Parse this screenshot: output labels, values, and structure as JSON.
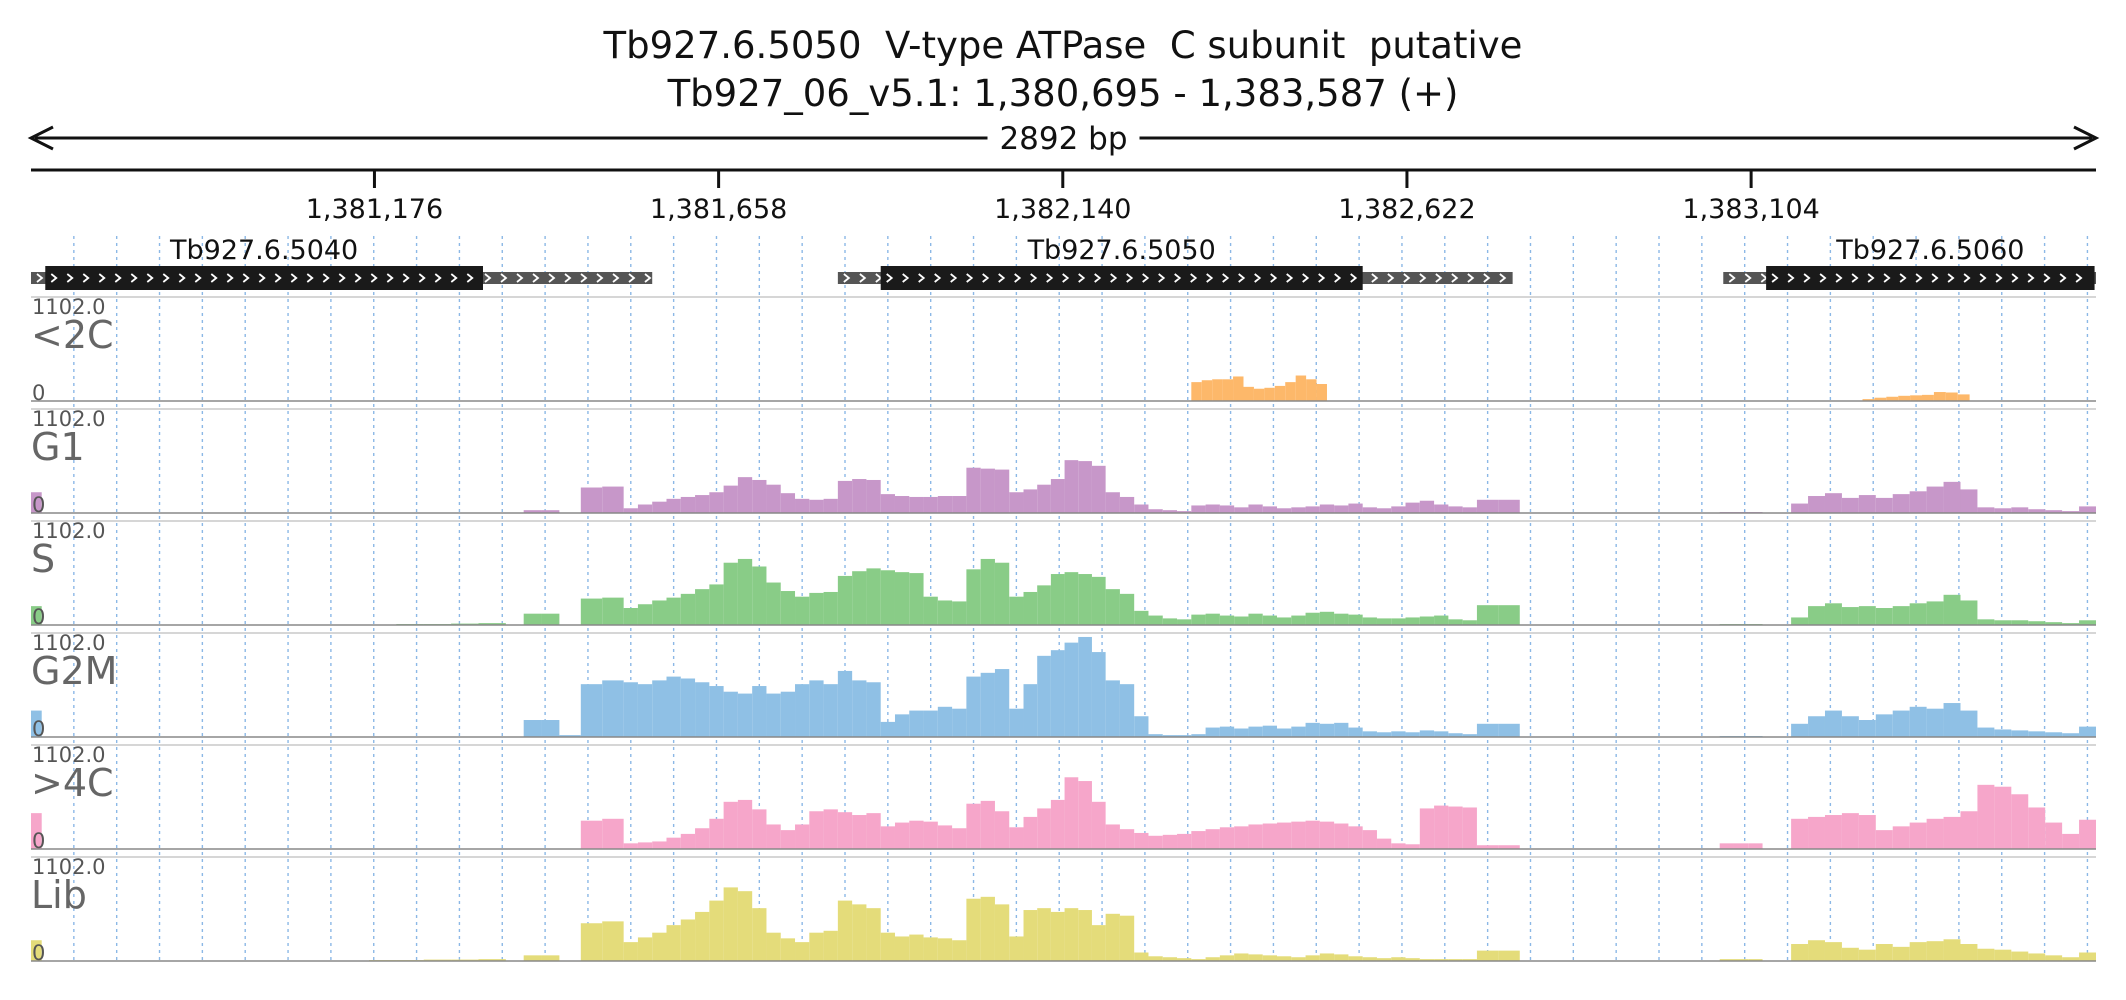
{
  "header": {
    "title": "Tb927.6.5050  V-type ATPase  C subunit  putative",
    "location": "Tb927_06_v5.1: 1,380,695 - 1,383,587 (+)",
    "span_label": "2892 bp"
  },
  "chart_data": {
    "type": "area",
    "region": {
      "chrom": "Tb927_06_v5.1",
      "start": 1380695,
      "end": 1383587,
      "strand": "+"
    },
    "ruler_ticks": [
      {
        "pos": 1381176,
        "label": "1,381,176"
      },
      {
        "pos": 1381658,
        "label": "1,381,658"
      },
      {
        "pos": 1382140,
        "label": "1,382,140"
      },
      {
        "pos": 1382622,
        "label": "1,382,622"
      },
      {
        "pos": 1383104,
        "label": "1,383,104"
      }
    ],
    "genes": [
      {
        "name": "Tb927.6.5040",
        "start": 1380695,
        "end": 1381565,
        "cds_start": 1380715,
        "cds_end": 1381328
      },
      {
        "name": "Tb927.6.5050",
        "start": 1381825,
        "end": 1382770,
        "cds_start": 1381885,
        "cds_end": 1382560
      },
      {
        "name": "Tb927.6.5060",
        "start": 1383065,
        "end": 1383587,
        "cds_start": 1383125,
        "cds_end": 1383585
      }
    ],
    "tracks": [
      {
        "name": "<2C",
        "color": "#fdb86a",
        "ymax_label": "1102.0",
        "ymin_label": "0",
        "segments": [
          {
            "start": 1382320,
            "end": 1382510,
            "values": [
              200,
              220,
              230,
              230,
              260,
              150,
              130,
              140,
              160,
              200,
              270,
              230,
              180
            ]
          },
          {
            "start": 1383260,
            "end": 1383410,
            "values": [
              20,
              35,
              45,
              55,
              60,
              65,
              95,
              90,
              70
            ]
          }
        ]
      },
      {
        "name": "G1",
        "color": "#c797c9",
        "ymax_label": "1102.0",
        "ymin_label": "0",
        "segments": [
          {
            "start": 1380695,
            "end": 1380710,
            "values": [
              220
            ]
          },
          {
            "start": 1381385,
            "end": 1381435,
            "values": [
              30,
              30
            ]
          },
          {
            "start": 1381465,
            "end": 1381525,
            "values": [
              270,
              280
            ]
          },
          {
            "start": 1381525,
            "end": 1381825,
            "values": [
              50,
              90,
              120,
              150,
              170,
              190,
              220,
              290,
              380,
              350,
              300,
              210,
              150,
              140,
              150
            ]
          },
          {
            "start": 1381825,
            "end": 1382085,
            "values": [
              340,
              360,
              350,
              200,
              180,
              170,
              170,
              180,
              180,
              480,
              470,
              460,
              220
            ]
          },
          {
            "start": 1382085,
            "end": 1382200,
            "values": [
              250,
              300,
              360,
              560,
              550,
              500
            ]
          },
          {
            "start": 1382200,
            "end": 1382320,
            "values": [
              220,
              170,
              90,
              40,
              30,
              20
            ]
          },
          {
            "start": 1382320,
            "end": 1382720,
            "values": [
              80,
              90,
              80,
              60,
              90,
              70,
              50,
              60,
              70,
              90,
              80,
              100,
              60,
              50,
              70,
              110,
              130,
              90,
              70,
              60
            ]
          },
          {
            "start": 1382720,
            "end": 1382780,
            "values": [
              140,
              140
            ]
          },
          {
            "start": 1383060,
            "end": 1383120,
            "values": [
              10,
              10,
              10
            ]
          },
          {
            "start": 1383160,
            "end": 1383587,
            "values": [
              100,
              180,
              210,
              160,
              190,
              160,
              200,
              230,
              280,
              330,
              250,
              60,
              50,
              60,
              40,
              30,
              20,
              70
            ]
          }
        ]
      },
      {
        "name": "S",
        "color": "#89cc87",
        "ymax_label": "1102.0",
        "ymin_label": "0",
        "segments": [
          {
            "start": 1380695,
            "end": 1380710,
            "values": [
              200
            ]
          },
          {
            "start": 1381130,
            "end": 1381360,
            "values": [
              5,
              5,
              10,
              10,
              15,
              20
            ]
          },
          {
            "start": 1381385,
            "end": 1381435,
            "values": [
              120,
              120
            ]
          },
          {
            "start": 1381465,
            "end": 1381525,
            "values": [
              280,
              290
            ]
          },
          {
            "start": 1381525,
            "end": 1381825,
            "values": [
              180,
              220,
              260,
              290,
              330,
              380,
              430,
              660,
              700,
              620,
              450,
              360,
              300,
              340,
              350
            ]
          },
          {
            "start": 1381825,
            "end": 1382085,
            "values": [
              520,
              570,
              600,
              580,
              560,
              550,
              300,
              260,
              250,
              590,
              700,
              660,
              300
            ]
          },
          {
            "start": 1382085,
            "end": 1382200,
            "values": [
              350,
              420,
              540,
              560,
              540,
              510
            ]
          },
          {
            "start": 1382200,
            "end": 1382320,
            "values": [
              380,
              330,
              150,
              100,
              70,
              60
            ]
          },
          {
            "start": 1382320,
            "end": 1382720,
            "values": [
              110,
              120,
              100,
              90,
              120,
              100,
              80,
              100,
              130,
              140,
              120,
              110,
              80,
              70,
              70,
              80,
              90,
              100,
              60,
              50
            ]
          },
          {
            "start": 1382720,
            "end": 1382780,
            "values": [
              210,
              210
            ]
          },
          {
            "start": 1383060,
            "end": 1383120,
            "values": [
              10,
              10,
              10
            ]
          },
          {
            "start": 1383160,
            "end": 1383587,
            "values": [
              80,
              200,
              230,
              190,
              200,
              180,
              200,
              230,
              250,
              320,
              260,
              60,
              50,
              50,
              40,
              30,
              20,
              50
            ]
          }
        ]
      },
      {
        "name": "G2M",
        "color": "#8fc0e5",
        "ymax_label": "1102.0",
        "ymin_label": "0",
        "segments": [
          {
            "start": 1380695,
            "end": 1380710,
            "values": [
              280
            ]
          },
          {
            "start": 1381385,
            "end": 1381435,
            "values": [
              180,
              180
            ]
          },
          {
            "start": 1381435,
            "end": 1381465,
            "values": [
              20
            ]
          },
          {
            "start": 1381465,
            "end": 1381525,
            "values": [
              560,
              600
            ]
          },
          {
            "start": 1381525,
            "end": 1381825,
            "values": [
              580,
              560,
              600,
              640,
              620,
              580,
              540,
              480,
              460,
              540,
              460,
              480,
              560,
              600,
              560
            ]
          },
          {
            "start": 1381825,
            "end": 1382085,
            "values": [
              700,
              600,
              580,
              160,
              240,
              280,
              280,
              320,
              300,
              640,
              680,
              720,
              300
            ]
          },
          {
            "start": 1382085,
            "end": 1382200,
            "values": [
              560,
              860,
              920,
              1000,
              1060,
              900
            ]
          },
          {
            "start": 1382200,
            "end": 1382320,
            "values": [
              600,
              560,
              220,
              30,
              20,
              20
            ]
          },
          {
            "start": 1382320,
            "end": 1382720,
            "values": [
              30,
              100,
              110,
              90,
              110,
              120,
              90,
              110,
              150,
              140,
              150,
              100,
              60,
              50,
              60,
              50,
              70,
              60,
              40,
              30
            ]
          },
          {
            "start": 1382720,
            "end": 1382780,
            "values": [
              140,
              140
            ]
          },
          {
            "start": 1383060,
            "end": 1383120,
            "values": [
              10,
              10,
              10
            ]
          },
          {
            "start": 1383160,
            "end": 1383587,
            "values": [
              140,
              220,
              280,
              220,
              180,
              240,
              280,
              320,
              300,
              360,
              280,
              100,
              80,
              70,
              60,
              50,
              40,
              110
            ]
          }
        ]
      },
      {
        "name": ">4C",
        "color": "#f6a6ca",
        "ymax_label": "1102.0",
        "ymin_label": "0",
        "segments": [
          {
            "start": 1380695,
            "end": 1380710,
            "values": [
              380
            ]
          },
          {
            "start": 1381465,
            "end": 1381525,
            "values": [
              300,
              320
            ]
          },
          {
            "start": 1381525,
            "end": 1381825,
            "values": [
              60,
              70,
              80,
              120,
              160,
              220,
              320,
              500,
              520,
              420,
              260,
              200,
              260,
              400,
              420
            ]
          },
          {
            "start": 1381825,
            "end": 1382085,
            "values": [
              390,
              360,
              380,
              240,
              280,
              300,
              290,
              250,
              220,
              480,
              510,
              400,
              230
            ]
          },
          {
            "start": 1382085,
            "end": 1382200,
            "values": [
              340,
              430,
              520,
              760,
              720,
              500
            ]
          },
          {
            "start": 1382200,
            "end": 1382320,
            "values": [
              260,
              210,
              170,
              140,
              150,
              160
            ]
          },
          {
            "start": 1382320,
            "end": 1382720,
            "values": [
              190,
              210,
              230,
              240,
              260,
              270,
              280,
              290,
              300,
              290,
              270,
              240,
              200,
              110,
              60,
              50,
              430,
              460,
              450,
              440
            ]
          },
          {
            "start": 1382720,
            "end": 1382780,
            "values": [
              40,
              40
            ]
          },
          {
            "start": 1383060,
            "end": 1383120,
            "values": [
              60,
              60,
              60
            ]
          },
          {
            "start": 1383160,
            "end": 1383587,
            "values": [
              320,
              340,
              360,
              380,
              360,
              200,
              240,
              280,
              320,
              340,
              400,
              680,
              660,
              580,
              440,
              280,
              160,
              310
            ]
          }
        ]
      },
      {
        "name": "Lib",
        "color": "#e4dc7a",
        "ymax_label": "1102.0",
        "ymin_label": "0",
        "segments": [
          {
            "start": 1380695,
            "end": 1380710,
            "values": [
              220
            ]
          },
          {
            "start": 1381130,
            "end": 1381360,
            "values": [
              5,
              10,
              10,
              15,
              15,
              20
            ]
          },
          {
            "start": 1381385,
            "end": 1381435,
            "values": [
              60,
              60
            ]
          },
          {
            "start": 1381465,
            "end": 1381525,
            "values": [
              400,
              420
            ]
          },
          {
            "start": 1381525,
            "end": 1381825,
            "values": [
              200,
              250,
              300,
              380,
              440,
              520,
              640,
              780,
              740,
              560,
              300,
              240,
              200,
              300,
              320
            ]
          },
          {
            "start": 1381825,
            "end": 1382085,
            "values": [
              640,
              600,
              560,
              300,
              260,
              280,
              250,
              240,
              220,
              660,
              680,
              600,
              260
            ]
          },
          {
            "start": 1382085,
            "end": 1382200,
            "values": [
              540,
              560,
              520,
              560,
              540,
              380
            ]
          },
          {
            "start": 1382200,
            "end": 1382320,
            "values": [
              500,
              480,
              90,
              50,
              40,
              30
            ]
          },
          {
            "start": 1382320,
            "end": 1382720,
            "values": [
              20,
              40,
              60,
              80,
              70,
              60,
              50,
              40,
              60,
              80,
              70,
              50,
              40,
              30,
              40,
              30,
              20,
              20,
              20,
              20
            ]
          },
          {
            "start": 1382720,
            "end": 1382780,
            "values": [
              110,
              110
            ]
          },
          {
            "start": 1383060,
            "end": 1383120,
            "values": [
              20,
              20,
              20
            ]
          },
          {
            "start": 1383160,
            "end": 1383587,
            "values": [
              180,
              220,
              200,
              140,
              120,
              180,
              150,
              200,
              210,
              230,
              180,
              130,
              120,
              100,
              80,
              60,
              40,
              90
            ]
          }
        ]
      }
    ]
  }
}
